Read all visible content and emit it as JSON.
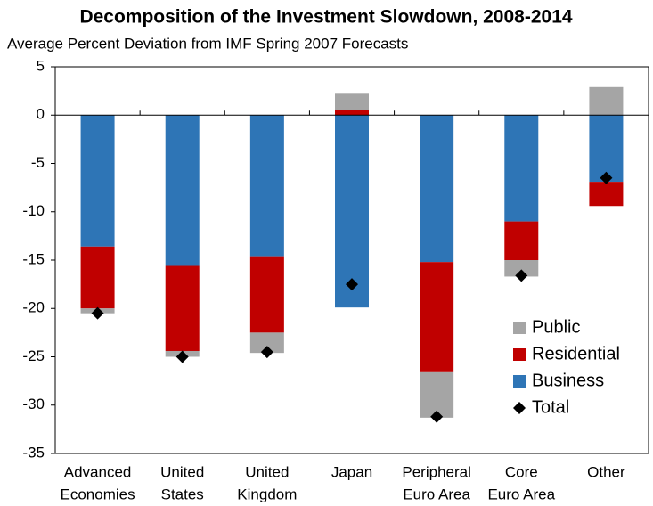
{
  "chart_data": {
    "type": "bar",
    "stacked": true,
    "title": "Decomposition of the Investment Slowdown, 2008-2014",
    "subtitle": "Average Percent Deviation from IMF Spring 2007 Forecasts",
    "categories": [
      [
        "Advanced",
        "Economies"
      ],
      [
        "United",
        "States"
      ],
      [
        "United",
        "Kingdom"
      ],
      [
        "Japan"
      ],
      [
        "Peripheral",
        "Euro Area"
      ],
      [
        "Core",
        "Euro Area"
      ],
      [
        "Other"
      ]
    ],
    "series": [
      {
        "name": "Business",
        "color": "#2e75b6",
        "values": [
          -13.6,
          -15.6,
          -14.6,
          -19.9,
          -15.2,
          -11.0,
          -6.9
        ]
      },
      {
        "name": "Residential",
        "color": "#c00000",
        "values": [
          -6.4,
          -8.8,
          -7.9,
          0.5,
          -11.4,
          -4.0,
          -2.5
        ]
      },
      {
        "name": "Public",
        "color": "#a5a5a5",
        "values": [
          -0.5,
          -0.6,
          -2.1,
          1.8,
          -4.7,
          -1.7,
          2.9
        ]
      },
      {
        "name": "Total",
        "type": "scatter",
        "marker": "diamond",
        "color": "#000000",
        "values": [
          -20.5,
          -25.0,
          -24.5,
          -17.5,
          -31.2,
          -16.6,
          -6.5
        ]
      }
    ],
    "ylim": [
      -35,
      5
    ],
    "yticks": [
      -35,
      -30,
      -25,
      -20,
      -15,
      -10,
      -5,
      0,
      5
    ],
    "legend": "lower right"
  }
}
